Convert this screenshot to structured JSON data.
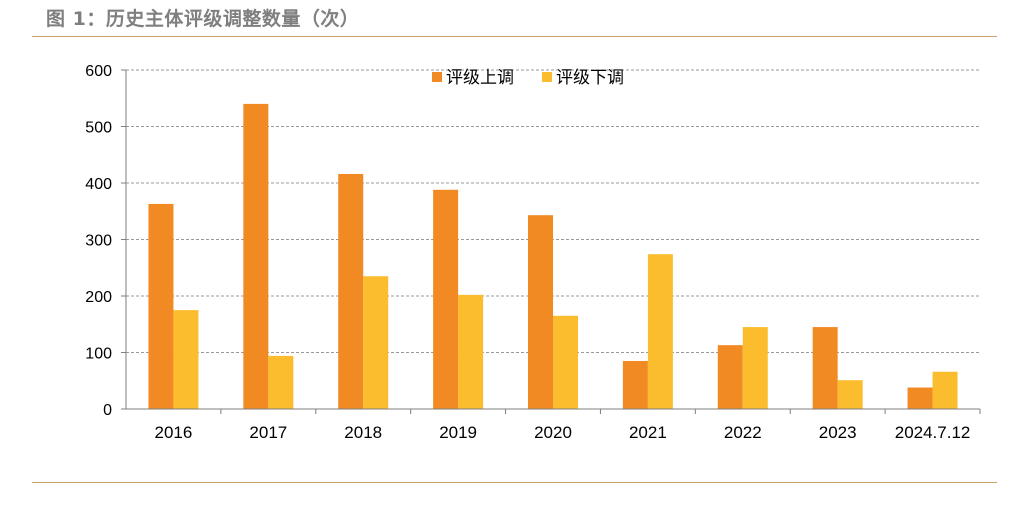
{
  "figure_title": "图 1：历史主体评级调整数量（次）",
  "chart_data": {
    "type": "bar",
    "categories": [
      "2016",
      "2017",
      "2018",
      "2019",
      "2020",
      "2021",
      "2022",
      "2023",
      "2024.7.12"
    ],
    "series": [
      {
        "name": "评级上调",
        "color": "#f28a24",
        "values": [
          363,
          540,
          416,
          388,
          343,
          85,
          113,
          145,
          38
        ]
      },
      {
        "name": "评级下调",
        "color": "#fbbd2d",
        "values": [
          175,
          94,
          235,
          202,
          165,
          274,
          145,
          51,
          66
        ]
      }
    ],
    "ylim": [
      0,
      600
    ],
    "yticks": [
      0,
      100,
      200,
      300,
      400,
      500,
      600
    ],
    "grid": "horizontal-dashed",
    "legend_position": "top-center",
    "xlabel": "",
    "ylabel": ""
  }
}
